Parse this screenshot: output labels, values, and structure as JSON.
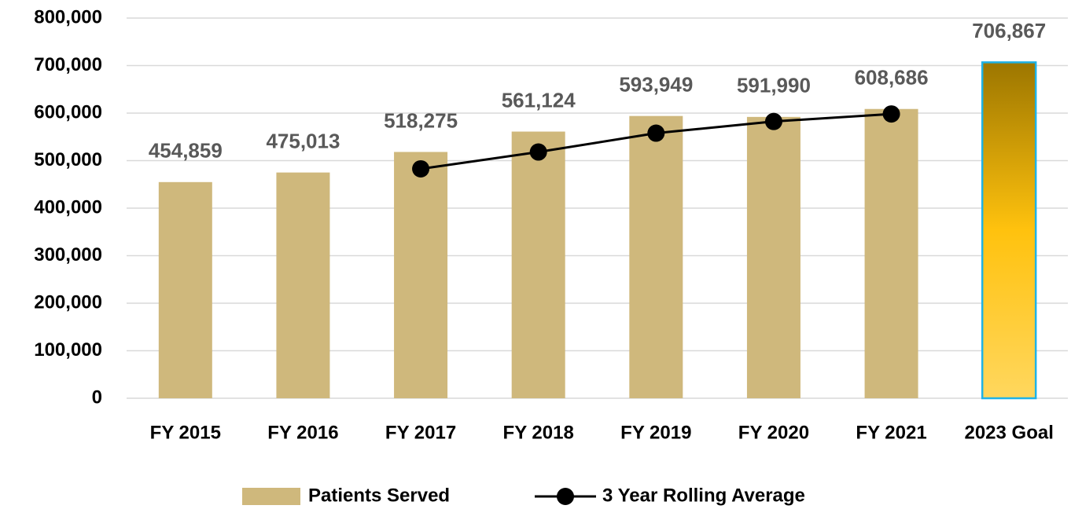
{
  "chart_data": {
    "type": "bar",
    "categories": [
      "FY 2015",
      "FY 2016",
      "FY 2017",
      "FY 2018",
      "FY 2019",
      "FY 2020",
      "FY 2021",
      "2023 Goal"
    ],
    "series": [
      {
        "name": "Patients Served",
        "type": "bar",
        "color": "#cfb87c",
        "values": [
          454859,
          475013,
          518275,
          561124,
          593949,
          591990,
          608686,
          706867
        ],
        "value_labels": [
          "454,859",
          "475,013",
          "518,275",
          "561,124",
          "593,949",
          "591,990",
          "608,686",
          "706,867"
        ],
        "bar_colors": [
          "#cfb87c",
          "#cfb87c",
          "#cfb87c",
          "#cfb87c",
          "#cfb87c",
          "#cfb87c",
          "#cfb87c",
          [
            "#9c7600",
            "#ffc20e",
            "#ffd75e"
          ]
        ],
        "bar_outline": [
          null,
          null,
          null,
          null,
          null,
          null,
          null,
          "#1fb2e6"
        ]
      },
      {
        "name": "3 Year Rolling Average",
        "type": "line",
        "color": "#000000",
        "values": [
          null,
          null,
          482716,
          518137,
          557783,
          582354,
          598208,
          null
        ]
      }
    ],
    "ylim": [
      0,
      800000
    ],
    "yticks": [
      0,
      {
        "value": 100000,
        "label": "100,000"
      },
      {
        "value": 200000,
        "label": "200,000"
      },
      {
        "value": 300000,
        "label": "300,000"
      },
      {
        "value": 400000,
        "label": "400,000"
      },
      {
        "value": 500000,
        "label": "500,000"
      },
      {
        "value": 600000,
        "label": "600,000"
      },
      {
        "value": 700000,
        "label": "700,000"
      },
      {
        "value": 800000,
        "label": "800,000"
      }
    ],
    "grid": true,
    "legend": "bottom"
  }
}
